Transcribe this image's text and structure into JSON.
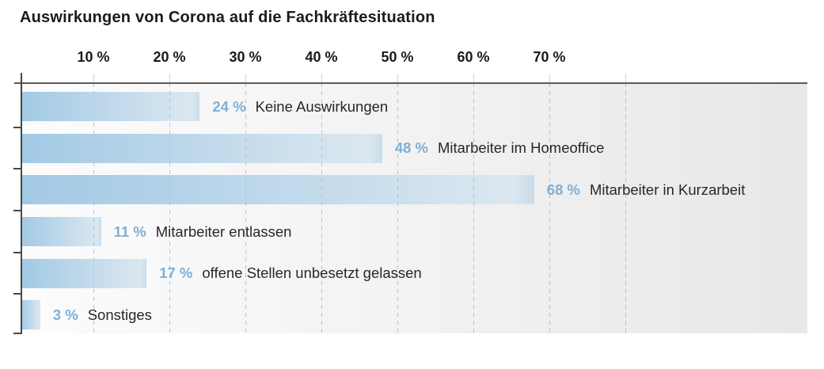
{
  "title": "Auswirkungen von Corona auf die Fachkräftesituation",
  "colors": {
    "title_text": "#1b1b1b",
    "category_text": "#272727",
    "percent_text": "#7fb0d4",
    "bar_gradient_start": "#a2c9e5",
    "bar_gradient_end": "#dbe7f0",
    "gridline": "#a9c7da",
    "axis_line": "#5a5a5a",
    "plot_background_start": "#fcfcfd",
    "plot_background_end": "#e8e8e9",
    "page_background": "#ffffff"
  },
  "chart_data": {
    "type": "bar",
    "orientation": "horizontal",
    "title": "Auswirkungen von Corona auf die Fachkräftesituation",
    "unit": "%",
    "categories": [
      "Keine Auswirkungen",
      "Mitarbeiter im Homeoffice",
      "Mitarbeiter in Kurzarbeit",
      "Mitarbeiter entlassen",
      "offene Stellen unbesetzt gelassen",
      "Sonstiges"
    ],
    "values": [
      24,
      48,
      68,
      11,
      17,
      3
    ],
    "value_labels": [
      "24 %",
      "48 %",
      "68 %",
      "11 %",
      "17 %",
      "3 %"
    ],
    "x_ticks": [
      {
        "value": 10,
        "label": "10 %"
      },
      {
        "value": 20,
        "label": "20 %"
      },
      {
        "value": 30,
        "label": "30 %"
      },
      {
        "value": 40,
        "label": "40 %"
      },
      {
        "value": 50,
        "label": "50 %"
      },
      {
        "value": 60,
        "label": "60 %"
      },
      {
        "value": 70,
        "label": "70 %"
      }
    ],
    "x_gridlines": [
      10,
      20,
      30,
      40,
      50,
      60,
      70,
      80
    ],
    "xlim": [
      0,
      104
    ],
    "grid": "dashed-vertical",
    "legend": "none",
    "xlabel": "",
    "ylabel": ""
  }
}
